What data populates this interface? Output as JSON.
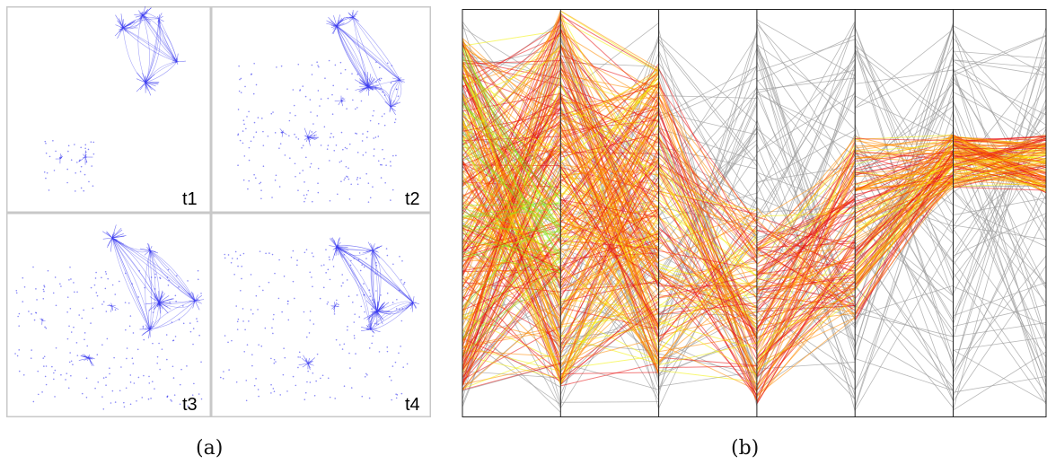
{
  "figure_a": {
    "panels": [
      {
        "label": "t1"
      },
      {
        "label": "t2"
      },
      {
        "label": "t3"
      },
      {
        "label": "t4"
      }
    ],
    "node_color": "#3a3af0",
    "border_color": "#c8c8c8"
  },
  "figure_b": {
    "axis_count": 7,
    "colors": {
      "context_line": "#9a9a9a",
      "low_density": "#e81010",
      "mid_density": "#ff8a00",
      "high_density": "#f2f200",
      "peak_density": "#7ce81c",
      "axis": "#222222"
    }
  },
  "captions": {
    "a": "(a)",
    "b": "(b)"
  }
}
